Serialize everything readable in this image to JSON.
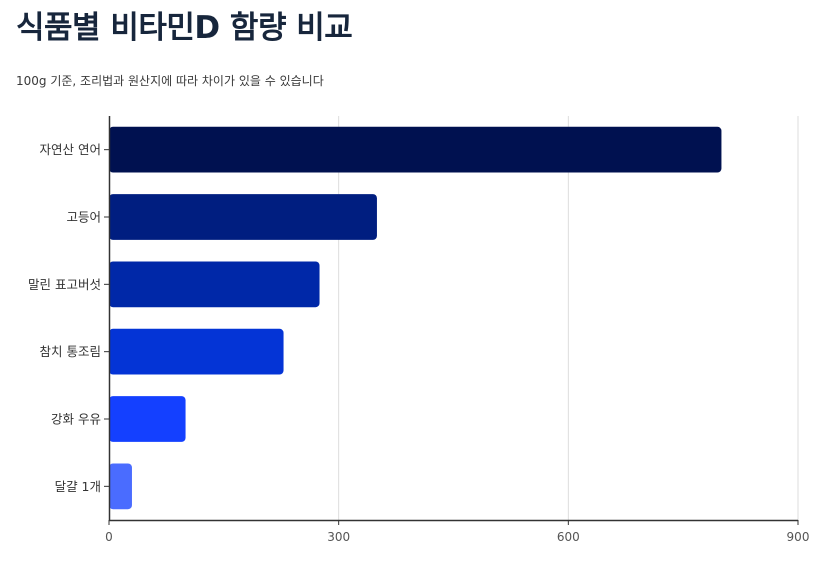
{
  "header": {
    "title": "식품별 비타민D 함량 비교",
    "subtitle": "100g 기준, 조리법과 원산지에 따라 차이가 있을 수 있습니다"
  },
  "chart_data": {
    "type": "bar",
    "orientation": "horizontal",
    "categories": [
      "자연산 연어",
      "고등어",
      "말린 표고버섯",
      "참치 통조림",
      "강화 우유",
      "달걀 1개"
    ],
    "values": [
      800,
      350,
      275,
      228,
      100,
      30
    ],
    "xlim": [
      0,
      900
    ],
    "xticks": [
      0,
      300,
      600,
      900
    ],
    "grid": true,
    "colors": [
      "#001150",
      "#001e80",
      "#0028a8",
      "#0434d6",
      "#1440ff",
      "#4a6cff"
    ]
  }
}
